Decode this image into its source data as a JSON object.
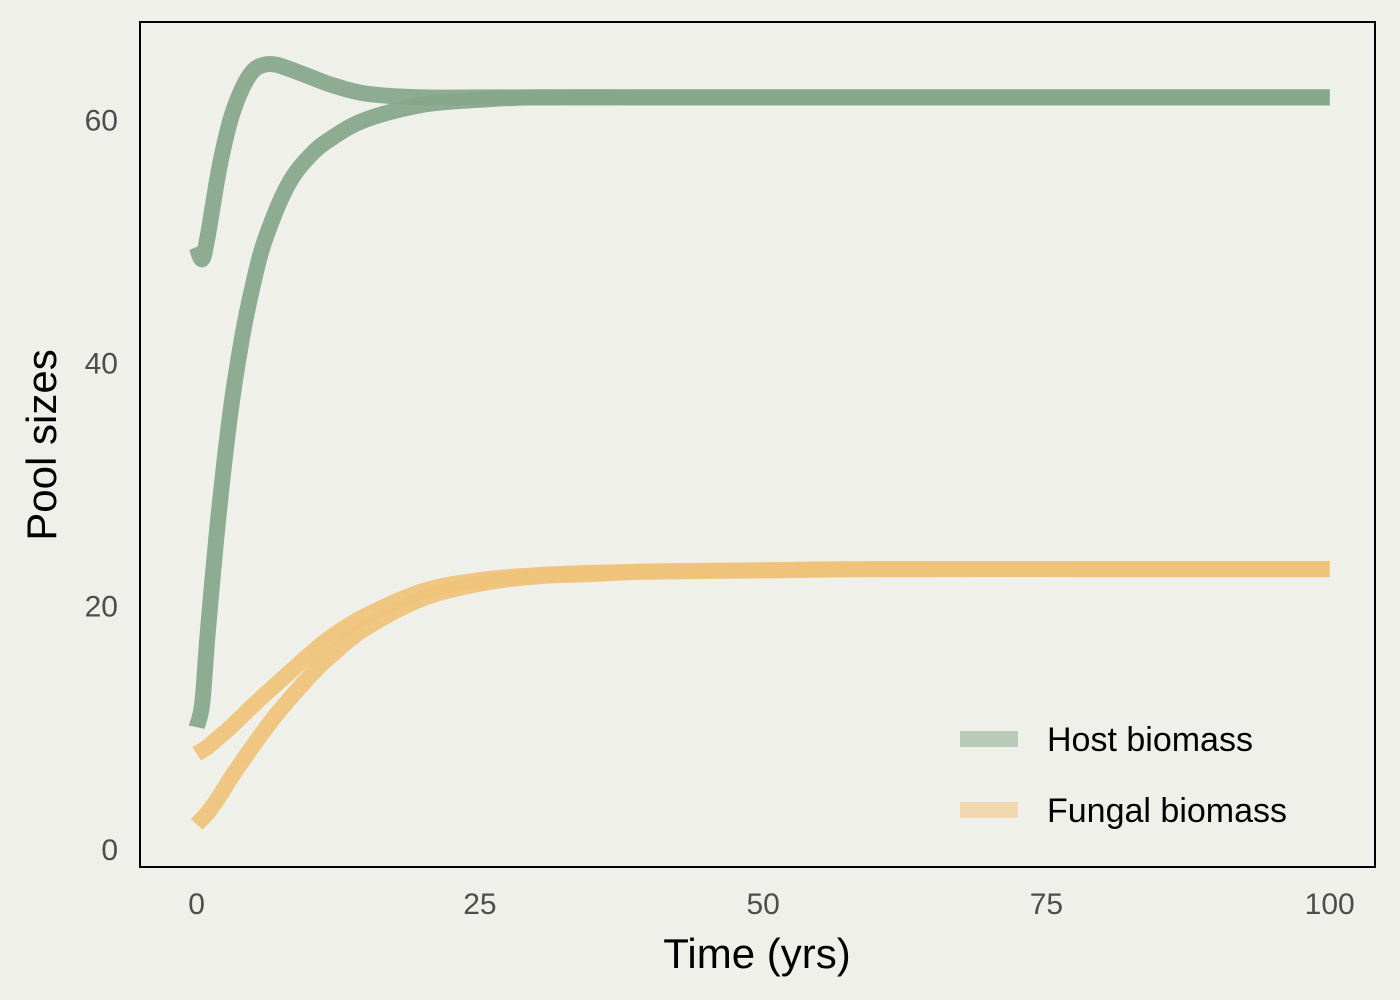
{
  "chart_data": {
    "type": "line",
    "title": "",
    "xlabel": "Time (yrs)",
    "ylabel": "Pool sizes",
    "xlim": [
      -5,
      104
    ],
    "ylim": [
      -1.5,
      68
    ],
    "x_ticks": [
      0,
      25,
      50,
      75,
      100
    ],
    "x_tick_labels": [
      "0",
      "25",
      "50",
      "75",
      "100"
    ],
    "y_ticks": [
      0,
      20,
      40,
      60
    ],
    "y_tick_labels": [
      "0",
      "20",
      "40",
      "60"
    ],
    "grid": false,
    "legend_position": "bottom-right",
    "series": [
      {
        "name": "Host biomass",
        "color": "#86a68a",
        "trajectories": [
          {
            "x": [
              0,
              0.5,
              1,
              2,
              3,
              4,
              5,
              6,
              7,
              8,
              10,
              12,
              15,
              20,
              25,
              30,
              40,
              50,
              60,
              80,
              100
            ],
            "y": [
              49.5,
              48.5,
              50.5,
              56,
              60,
              62.5,
              64,
              64.5,
              64.5,
              64.2,
              63.5,
              62.8,
              62.1,
              61.8,
              61.8,
              61.8,
              61.8,
              61.8,
              61.8,
              61.8,
              61.8
            ]
          },
          {
            "x": [
              0,
              0.5,
              1,
              2,
              3,
              4,
              5,
              6,
              8,
              10,
              12,
              15,
              20,
              25,
              30,
              40,
              50,
              60,
              80,
              100
            ],
            "y": [
              10,
              12,
              18,
              28,
              36,
              42,
              46.5,
              50,
              54.5,
              57,
              58.5,
              60,
              61.2,
              61.6,
              61.8,
              61.8,
              61.8,
              61.8,
              61.8,
              61.8
            ]
          }
        ]
      },
      {
        "name": "Fungal biomass",
        "color": "#f0c27a",
        "trajectories": [
          {
            "x": [
              0,
              1,
              2,
              3,
              5,
              7,
              10,
              12,
              15,
              20,
              25,
              30,
              35,
              40,
              50,
              60,
              80,
              100
            ],
            "y": [
              7.8,
              8.4,
              9.2,
              10,
              11.8,
              13.5,
              16,
              17.5,
              19.2,
              21.2,
              22.1,
              22.5,
              22.7,
              22.8,
              22.9,
              23,
              23,
              23
            ]
          },
          {
            "x": [
              0,
              1,
              2,
              3,
              5,
              7,
              10,
              12,
              15,
              20,
              25,
              30,
              35,
              40,
              50,
              60,
              80,
              100
            ],
            "y": [
              2,
              3,
              4.3,
              5.8,
              8.5,
              11,
              14.2,
              16,
              18.2,
              20.6,
              21.8,
              22.4,
              22.6,
              22.8,
              22.9,
              23,
              23,
              23
            ]
          }
        ]
      }
    ]
  }
}
